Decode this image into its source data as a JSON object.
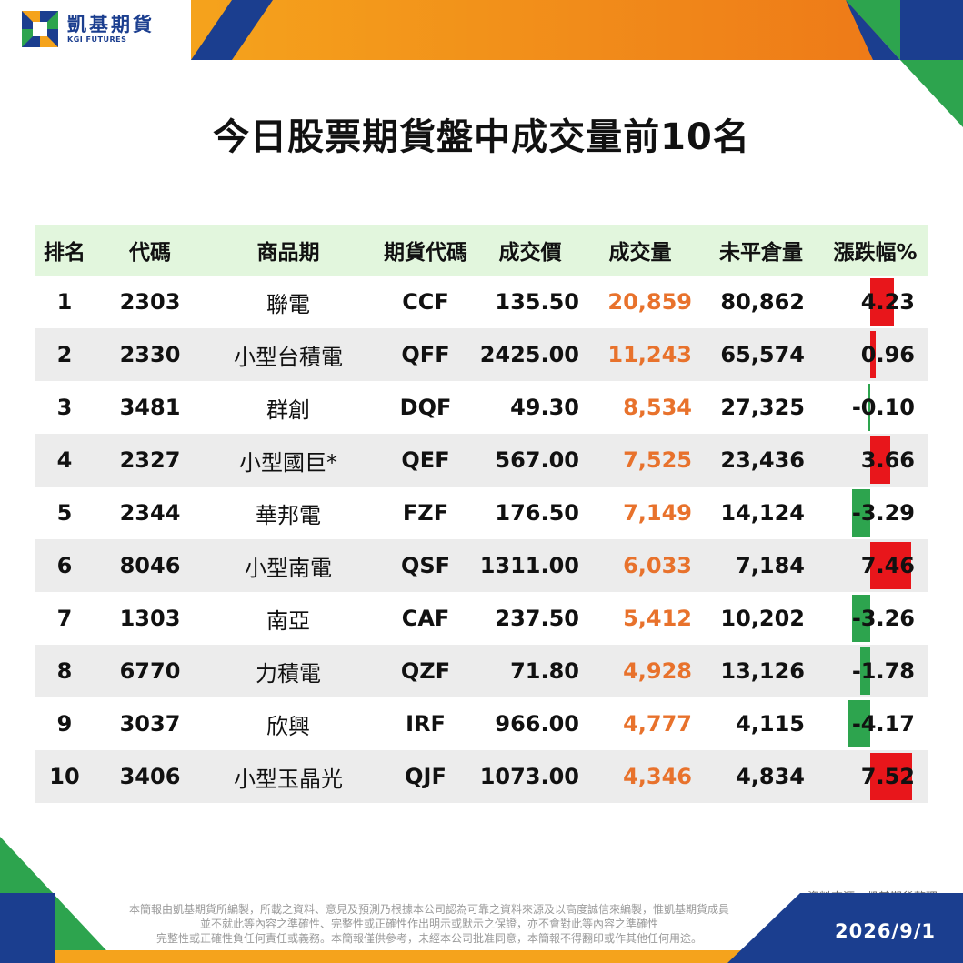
{
  "brand": {
    "name_cn": "凱基期貨",
    "name_en": "KGI FUTURES",
    "colors": {
      "blue": "#1b3e8f",
      "orange": "#f08a1c",
      "green": "#2da44e",
      "red": "#e8161b"
    }
  },
  "title": "今日股票期貨盤中成交量前10名",
  "table": {
    "headers": {
      "rank": "排名",
      "code": "代碼",
      "name": "商品期",
      "futures_code": "期貨代碼",
      "price": "成交價",
      "volume": "成交量",
      "open_interest": "未平倉量",
      "change_pct": "漲跌幅%"
    },
    "rows": [
      {
        "rank": "1",
        "code": "2303",
        "name": "聯電",
        "futures_code": "CCF",
        "price": "135.50",
        "volume": "20,859",
        "open_interest": "80,862",
        "change_pct": "4.23",
        "change_value": 4.23
      },
      {
        "rank": "2",
        "code": "2330",
        "name": "小型台積電",
        "futures_code": "QFF",
        "price": "2425.00",
        "volume": "11,243",
        "open_interest": "65,574",
        "change_pct": "0.96",
        "change_value": 0.96
      },
      {
        "rank": "3",
        "code": "3481",
        "name": "群創",
        "futures_code": "DQF",
        "price": "49.30",
        "volume": "8,534",
        "open_interest": "27,325",
        "change_pct": "-0.10",
        "change_value": -0.1
      },
      {
        "rank": "4",
        "code": "2327",
        "name": "小型國巨*",
        "futures_code": "QEF",
        "price": "567.00",
        "volume": "7,525",
        "open_interest": "23,436",
        "change_pct": "3.66",
        "change_value": 3.66
      },
      {
        "rank": "5",
        "code": "2344",
        "name": "華邦電",
        "futures_code": "FZF",
        "price": "176.50",
        "volume": "7,149",
        "open_interest": "14,124",
        "change_pct": "-3.29",
        "change_value": -3.29
      },
      {
        "rank": "6",
        "code": "8046",
        "name": "小型南電",
        "futures_code": "QSF",
        "price": "1311.00",
        "volume": "6,033",
        "open_interest": "7,184",
        "change_pct": "7.46",
        "change_value": 7.46
      },
      {
        "rank": "7",
        "code": "1303",
        "name": "南亞",
        "futures_code": "CAF",
        "price": "237.50",
        "volume": "5,412",
        "open_interest": "10,202",
        "change_pct": "-3.26",
        "change_value": -3.26
      },
      {
        "rank": "8",
        "code": "6770",
        "name": "力積電",
        "futures_code": "QZF",
        "price": "71.80",
        "volume": "4,928",
        "open_interest": "13,126",
        "change_pct": "-1.78",
        "change_value": -1.78
      },
      {
        "rank": "9",
        "code": "3037",
        "name": "欣興",
        "futures_code": "IRF",
        "price": "966.00",
        "volume": "4,777",
        "open_interest": "4,115",
        "change_pct": "-4.17",
        "change_value": -4.17
      },
      {
        "rank": "10",
        "code": "3406",
        "name": "小型玉晶光",
        "futures_code": "QJF",
        "price": "1073.00",
        "volume": "4,346",
        "open_interest": "4,834",
        "change_pct": "7.52",
        "change_value": 7.52
      }
    ]
  },
  "source": "資料來源：凱基期貨整理",
  "disclaimer": [
    "本簡報由凱基期貨所編製，所載之資料、意見及預測乃根據本公司認為可靠之資料來源及以高度誠信來編製，惟凱基期貨成員",
    "並不就此等內容之準確性、完整性或正確性作出明示或默示之保證，亦不會對此等內容之準確性",
    "完整性或正確性負任何責任或義務。本簡報僅供參考，未經本公司批准同意，本簡報不得翻印或作其他任何用途。"
  ],
  "date": "2026/9/1"
}
